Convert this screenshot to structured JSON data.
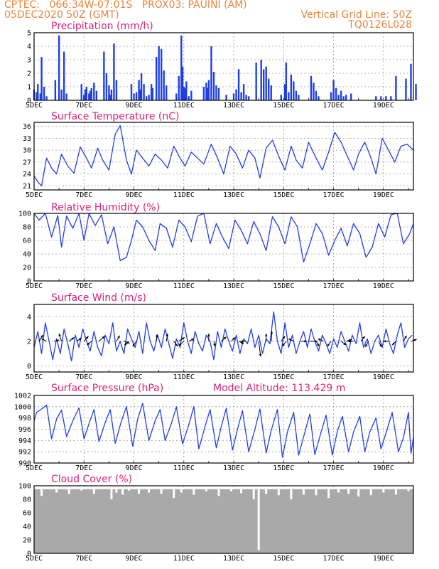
{
  "header": {
    "line1": "CPTEC:   066:34W-07:01S   PROX03: PAUINI (AM)",
    "line2_left": "05DEC2020 50Z (GMT)",
    "line2_right": "Vertical Grid Line: 50Z",
    "line3_right": "TQ0126L028"
  },
  "colors": {
    "line": "#1f3fe6",
    "title": "#e0207a",
    "header": "#e8853a",
    "cloud": "#a9a9a9"
  },
  "x_tick_labels": [
    "5DEC",
    "7DEC",
    "9DEC",
    "11DEC",
    "13DEC",
    "15DEC",
    "17DEC",
    "19DEC"
  ],
  "chart_data": [
    {
      "id": "precip",
      "type": "bar",
      "title": "Precipitation (mm/h)",
      "ylim": [
        0,
        5
      ],
      "yticks": [
        0,
        1,
        2,
        3,
        4,
        5
      ],
      "x_days": [
        0,
        0.1,
        0.15,
        0.25,
        0.3,
        0.4,
        0.5,
        0.85,
        1.0,
        1.1,
        1.2,
        1.3,
        1.9,
        2.0,
        2.05,
        2.1,
        2.2,
        2.25,
        2.3,
        2.4,
        2.5,
        2.8,
        2.9,
        3.0,
        3.05,
        3.1,
        3.2,
        3.3,
        3.9,
        4.0,
        4.1,
        4.2,
        4.25,
        4.3,
        4.4,
        4.5,
        4.6,
        4.7,
        4.75,
        4.9,
        5.0,
        5.1,
        5.2,
        5.3,
        5.7,
        5.8,
        5.9,
        5.95,
        6.0,
        6.05,
        6.1,
        6.2,
        6.3,
        6.8,
        6.9,
        6.95,
        7.0,
        7.1,
        7.2,
        7.3,
        7.4,
        7.7,
        8.0,
        8.1,
        8.2,
        8.3,
        8.4,
        8.5,
        8.6,
        8.9,
        9.1,
        9.2,
        9.3,
        9.4,
        9.5,
        9.9,
        10.05,
        10.1,
        10.2,
        10.3,
        10.4,
        10.5,
        10.6,
        11.1,
        11.2,
        11.3,
        11.4,
        11.9,
        12.0,
        12.1,
        12.2,
        12.3,
        12.4,
        12.5,
        12.7,
        13.7,
        13.9,
        14.1,
        14.3,
        14.5,
        14.9,
        15.1,
        15.3
      ],
      "values": [
        0.8,
        0.6,
        1.2,
        0.5,
        3.2,
        1.0,
        0.3,
        1.5,
        4.8,
        0.8,
        3.6,
        0.5,
        1.2,
        0.4,
        0.8,
        1.0,
        0.5,
        0.7,
        0.9,
        1.3,
        0.7,
        3.6,
        2.0,
        1.1,
        0.4,
        0.8,
        4.2,
        1.5,
        1.2,
        0.5,
        0.6,
        1.5,
        0.8,
        2.0,
        1.2,
        0.3,
        0.4,
        1.2,
        0.9,
        3.2,
        4.0,
        3.8,
        2.2,
        1.1,
        0.5,
        1.8,
        4.8,
        2.5,
        1.0,
        0.9,
        1.4,
        0.3,
        0.7,
        1.0,
        1.3,
        0.9,
        1.5,
        4.0,
        2.1,
        1.1,
        0.9,
        0.4,
        0.5,
        0.8,
        2.3,
        0.6,
        1.2,
        0.4,
        0.3,
        2.8,
        3.0,
        2.3,
        2.5,
        1.6,
        1.1,
        0.4,
        1.2,
        2.8,
        0.6,
        1.9,
        1.4,
        0.7,
        0.4,
        1.8,
        1.3,
        0.7,
        0.3,
        0.6,
        1.5,
        0.9,
        0.4,
        0.7,
        0.3,
        0.4,
        0.5,
        0.3,
        0.3,
        0.3,
        0.3,
        1.8,
        1.6,
        2.7,
        1.2
      ]
    },
    {
      "id": "temp",
      "type": "line",
      "title": "Surface Temperature (nC)",
      "ylim": [
        20,
        37
      ],
      "yticks": [
        21,
        24,
        27,
        30,
        33,
        36
      ],
      "x_days": [
        0,
        0.15,
        0.3,
        0.5,
        0.7,
        0.9,
        1.1,
        1.35,
        1.6,
        1.85,
        2.1,
        2.3,
        2.55,
        2.75,
        3.0,
        3.25,
        3.45,
        3.7,
        3.9,
        4.1,
        4.35,
        4.6,
        4.85,
        5.1,
        5.35,
        5.6,
        5.85,
        6.05,
        6.3,
        6.55,
        6.8,
        7.1,
        7.35,
        7.6,
        7.85,
        8.1,
        8.35,
        8.6,
        8.85,
        9.05,
        9.3,
        9.55,
        9.8,
        10.05,
        10.3,
        10.5,
        10.75,
        11.0,
        11.3,
        11.55,
        11.8,
        12.05,
        12.3,
        12.55,
        12.8,
        13.0,
        13.25,
        13.5,
        13.7,
        13.95,
        14.2,
        14.45,
        14.7,
        14.95,
        15.2
      ],
      "values": [
        23.5,
        22.0,
        21.0,
        28.0,
        25.5,
        24.0,
        29.0,
        26.0,
        24.2,
        30.8,
        28.0,
        25.5,
        30.5,
        27.5,
        25.0,
        34.0,
        36.2,
        27.5,
        24.0,
        30.0,
        28.0,
        26.0,
        29.0,
        27.5,
        25.5,
        31.0,
        28.0,
        26.0,
        29.5,
        28.0,
        26.5,
        31.5,
        28.0,
        24.0,
        31.0,
        29.0,
        25.5,
        30.0,
        28.0,
        23.0,
        30.5,
        32.5,
        28.5,
        25.0,
        31.0,
        27.5,
        25.5,
        32.0,
        28.0,
        25.0,
        29.5,
        34.5,
        32.0,
        28.5,
        25.0,
        29.0,
        32.0,
        28.0,
        24.0,
        33.0,
        30.0,
        27.0,
        31.0,
        31.5,
        30.0
      ]
    },
    {
      "id": "rh",
      "type": "line",
      "title": "Relative Humidity (%)",
      "ylim": [
        0,
        100
      ],
      "yticks": [
        0,
        20,
        40,
        60,
        80,
        100
      ],
      "x_days": [
        0,
        0.2,
        0.45,
        0.7,
        0.95,
        1.1,
        1.3,
        1.55,
        1.8,
        2.0,
        2.2,
        2.45,
        2.7,
        2.95,
        3.2,
        3.45,
        3.7,
        3.9,
        4.1,
        4.35,
        4.6,
        4.85,
        5.05,
        5.3,
        5.55,
        5.8,
        6.05,
        6.3,
        6.55,
        6.8,
        7.05,
        7.3,
        7.55,
        7.8,
        8.05,
        8.3,
        8.55,
        8.8,
        9.05,
        9.3,
        9.55,
        9.8,
        10.05,
        10.3,
        10.55,
        10.8,
        11.05,
        11.3,
        11.55,
        11.8,
        12.05,
        12.3,
        12.55,
        12.8,
        13.05,
        13.3,
        13.55,
        13.8,
        14.05,
        14.3,
        14.55,
        14.8,
        15.05,
        15.2
      ],
      "values": [
        100,
        90,
        100,
        65,
        97,
        50,
        96,
        78,
        100,
        60,
        100,
        82,
        98,
        55,
        80,
        30,
        35,
        60,
        90,
        80,
        60,
        45,
        85,
        78,
        50,
        90,
        80,
        58,
        96,
        100,
        55,
        85,
        65,
        48,
        90,
        75,
        55,
        88,
        70,
        45,
        95,
        80,
        55,
        95,
        80,
        28,
        55,
        85,
        70,
        38,
        60,
        78,
        52,
        85,
        70,
        35,
        50,
        85,
        65,
        98,
        100,
        55,
        70,
        85
      ]
    },
    {
      "id": "wind",
      "type": "line",
      "title": "Surface Wind (m/s)",
      "ylim": [
        -0.5,
        5
      ],
      "yticks": [
        0,
        2,
        4
      ],
      "x_days": [
        0,
        0.15,
        0.3,
        0.45,
        0.6,
        0.75,
        0.9,
        1.05,
        1.2,
        1.35,
        1.5,
        1.65,
        1.8,
        1.95,
        2.1,
        2.25,
        2.4,
        2.55,
        2.7,
        2.85,
        3.0,
        3.15,
        3.3,
        3.45,
        3.6,
        3.75,
        3.9,
        4.05,
        4.2,
        4.35,
        4.5,
        4.65,
        4.8,
        4.95,
        5.1,
        5.25,
        5.4,
        5.55,
        5.7,
        5.85,
        6.0,
        6.15,
        6.3,
        6.45,
        6.6,
        6.75,
        6.9,
        7.05,
        7.2,
        7.35,
        7.5,
        7.65,
        7.8,
        7.95,
        8.1,
        8.25,
        8.4,
        8.55,
        8.7,
        8.85,
        9.0,
        9.15,
        9.3,
        9.45,
        9.6,
        9.75,
        9.9,
        10.05,
        10.2,
        10.35,
        10.5,
        10.65,
        10.8,
        10.95,
        11.1,
        11.25,
        11.4,
        11.55,
        11.7,
        11.85,
        12.0,
        12.15,
        12.3,
        12.45,
        12.6,
        12.75,
        12.9,
        13.05,
        13.2,
        13.35,
        13.5,
        13.65,
        13.8,
        13.95,
        14.1,
        14.25,
        14.4,
        14.55,
        14.7,
        14.85,
        15.0,
        15.15
      ],
      "values": [
        1.5,
        2.8,
        1.0,
        3.5,
        2.0,
        0.5,
        2.2,
        1.0,
        3.0,
        1.8,
        0.4,
        2.5,
        1.5,
        3.0,
        2.0,
        1.2,
        2.8,
        1.5,
        0.8,
        2.5,
        1.8,
        3.5,
        1.2,
        2.0,
        1.0,
        3.0,
        2.2,
        1.5,
        2.8,
        1.0,
        3.5,
        2.0,
        1.2,
        2.5,
        1.5,
        3.0,
        1.8,
        0.6,
        2.2,
        1.5,
        3.5,
        2.0,
        1.0,
        2.8,
        1.8,
        1.2,
        2.5,
        2.0,
        0.5,
        2.8,
        1.5,
        3.0,
        2.0,
        1.2,
        2.5,
        1.0,
        2.2,
        1.8,
        3.0,
        1.5,
        2.5,
        1.0,
        2.2,
        1.8,
        4.4,
        2.0,
        1.0,
        3.5,
        1.5,
        2.5,
        1.0,
        2.0,
        2.8,
        1.5,
        3.0,
        2.0,
        1.2,
        2.5,
        1.8,
        1.0,
        2.2,
        1.5,
        2.8,
        2.0,
        1.2,
        2.5,
        1.8,
        3.5,
        1.5,
        2.2,
        1.0,
        2.0,
        2.5,
        1.5,
        3.0,
        1.8,
        1.0,
        2.5,
        3.5,
        1.5,
        2.2,
        2.5
      ],
      "arrows": [
        {
          "day": 0.2,
          "dx": 0.6,
          "dy": 1.0
        },
        {
          "day": 0.5,
          "dx": -0.8,
          "dy": 0.4
        },
        {
          "day": 0.8,
          "dx": 0.8,
          "dy": 0.2
        },
        {
          "day": 1.1,
          "dx": -0.4,
          "dy": 1.2
        },
        {
          "day": 1.4,
          "dx": 0.8,
          "dy": 0.6
        },
        {
          "day": 1.7,
          "dx": 0.8,
          "dy": 0.5
        },
        {
          "day": 2.0,
          "dx": 0.7,
          "dy": 0.8
        },
        {
          "day": 2.3,
          "dx": -0.7,
          "dy": -0.6
        },
        {
          "day": 2.6,
          "dx": 0.9,
          "dy": 0.8
        },
        {
          "day": 3.3,
          "dx": 0.5,
          "dy": 0.9
        },
        {
          "day": 3.6,
          "dx": 0.9,
          "dy": -0.3
        },
        {
          "day": 3.8,
          "dx": -0.7,
          "dy": -0.6
        },
        {
          "day": 4.1,
          "dx": -0.6,
          "dy": -0.8
        },
        {
          "day": 4.9,
          "dx": 0.1,
          "dy": 1.1
        },
        {
          "day": 5.3,
          "dx": 0.2,
          "dy": 1.2
        },
        {
          "day": 5.6,
          "dx": 0.6,
          "dy": -0.8
        },
        {
          "day": 5.8,
          "dx": 0.9,
          "dy": 0.6
        },
        {
          "day": 6.0,
          "dx": -0.8,
          "dy": -0.7
        },
        {
          "day": 6.2,
          "dx": 0.8,
          "dy": 0.4
        },
        {
          "day": 7.0,
          "dx": 0.0,
          "dy": 1.2
        },
        {
          "day": 7.2,
          "dx": 0.2,
          "dy": -0.8
        },
        {
          "day": 7.5,
          "dx": 0.8,
          "dy": 0.7
        },
        {
          "day": 7.9,
          "dx": 0.6,
          "dy": 0.6
        },
        {
          "day": 8.2,
          "dx": 0.8,
          "dy": -0.4
        },
        {
          "day": 8.5,
          "dx": -0.9,
          "dy": 0.0
        },
        {
          "day": 9.0,
          "dx": 0.3,
          "dy": -2.4
        },
        {
          "day": 9.3,
          "dx": 0.0,
          "dy": 1.2
        },
        {
          "day": 9.5,
          "dx": 0.1,
          "dy": 1.6
        },
        {
          "day": 9.9,
          "dx": 0.6,
          "dy": 0.8
        },
        {
          "day": 10.1,
          "dx": -0.6,
          "dy": -0.8
        },
        {
          "day": 10.4,
          "dx": -0.8,
          "dy": 0.4
        },
        {
          "day": 10.7,
          "dx": 0.9,
          "dy": 0.0
        },
        {
          "day": 11.0,
          "dx": 1.4,
          "dy": 0.0
        },
        {
          "day": 11.3,
          "dx": 0.5,
          "dy": -0.8
        },
        {
          "day": 11.6,
          "dx": -0.9,
          "dy": 0.4
        },
        {
          "day": 11.9,
          "dx": -0.6,
          "dy": -0.8
        },
        {
          "day": 12.3,
          "dx": 0.8,
          "dy": -0.6
        },
        {
          "day": 12.5,
          "dx": 0.9,
          "dy": 0.3
        },
        {
          "day": 12.8,
          "dx": -0.9,
          "dy": 0.0
        },
        {
          "day": 13.1,
          "dx": 0.6,
          "dy": 0.8
        },
        {
          "day": 13.4,
          "dx": -0.5,
          "dy": -0.9
        },
        {
          "day": 13.8,
          "dx": 0.5,
          "dy": -0.9
        },
        {
          "day": 14.2,
          "dx": -0.8,
          "dy": 0.0
        },
        {
          "day": 14.5,
          "dx": -0.6,
          "dy": -0.6
        },
        {
          "day": 14.8,
          "dx": 0.5,
          "dy": 0.9
        },
        {
          "day": 15.1,
          "dx": 0.9,
          "dy": 0.3
        }
      ]
    },
    {
      "id": "pres",
      "type": "line",
      "title": "Surface Pressure (hPa)",
      "annotation": "Model Altitude: 113.429 m",
      "ylim": [
        990,
        1002
      ],
      "yticks": [
        990,
        992,
        994,
        996,
        998,
        1000,
        1002
      ],
      "x_days": [
        0,
        0.1,
        0.3,
        0.5,
        0.7,
        0.9,
        1.1,
        1.3,
        1.55,
        1.8,
        2.0,
        2.2,
        2.4,
        2.6,
        2.85,
        3.05,
        3.25,
        3.5,
        3.7,
        3.95,
        4.15,
        4.35,
        4.6,
        4.85,
        5.05,
        5.25,
        5.5,
        5.7,
        5.95,
        6.2,
        6.4,
        6.6,
        6.85,
        7.05,
        7.3,
        7.5,
        7.7,
        7.95,
        8.15,
        8.35,
        8.6,
        8.85,
        9.05,
        9.3,
        9.5,
        9.75,
        9.95,
        10.15,
        10.4,
        10.6,
        10.85,
        11.05,
        11.25,
        11.5,
        11.7,
        11.95,
        12.15,
        12.35,
        12.6,
        12.8,
        13.05,
        13.25,
        13.45,
        13.7,
        13.9,
        14.15,
        14.35,
        14.6,
        14.8,
        15.0,
        15.1,
        15.2
      ],
      "values": [
        997.5,
        999.0,
        999.6,
        1000.3,
        994.3,
        997.8,
        999.4,
        994.7,
        997.5,
        999.8,
        994.3,
        997.0,
        999.5,
        993.8,
        997.2,
        999.5,
        993.5,
        997.5,
        1000.0,
        993.0,
        997.8,
        1000.6,
        994.0,
        997.5,
        999.5,
        994.0,
        997.0,
        1000.0,
        993.4,
        996.8,
        1000.0,
        992.5,
        996.5,
        999.5,
        992.7,
        996.5,
        999.7,
        992.3,
        996.0,
        999.3,
        992.0,
        996.0,
        999.6,
        991.8,
        995.8,
        999.5,
        991.0,
        995.5,
        999.0,
        991.4,
        995.5,
        998.7,
        991.5,
        995.5,
        998.5,
        991.4,
        995.6,
        998.3,
        992.0,
        995.5,
        998.3,
        992.0,
        995.5,
        998.0,
        992.5,
        996.0,
        999.0,
        992.0,
        994.5,
        999.0,
        991.7,
        994.5
      ]
    },
    {
      "id": "cloud",
      "type": "bar",
      "title": "Cloud Cover (%)",
      "ylim": [
        0,
        100
      ],
      "yticks": [
        0,
        20,
        40,
        60,
        80,
        100
      ],
      "base_value": 95,
      "x_days": [
        0.3,
        0.9,
        1.4,
        1.9,
        2.4,
        3.1,
        3.3,
        3.55,
        3.8,
        4.2,
        4.6,
        5.1,
        5.6,
        5.9,
        6.4,
        6.9,
        7.4,
        7.9,
        8.3,
        8.8,
        9.0,
        9.3,
        9.8,
        10.3,
        10.8,
        11.3,
        11.8,
        12.2,
        12.6,
        13.0,
        13.5,
        14.0,
        14.5,
        15.0
      ],
      "values": [
        85,
        90,
        88,
        93,
        88,
        80,
        90,
        87,
        93,
        88,
        90,
        88,
        82,
        90,
        87,
        92,
        85,
        92,
        89,
        80,
        5,
        88,
        86,
        80,
        87,
        86,
        82,
        90,
        88,
        84,
        86,
        90,
        87,
        92
      ]
    }
  ]
}
